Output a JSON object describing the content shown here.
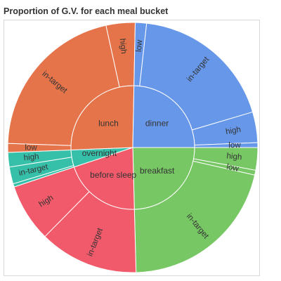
{
  "chart_data": {
    "type": "sunburst",
    "title": "Proportion of G.V. for each meal bucket",
    "colors": {
      "breakfast": "#77c764",
      "before sleep": "#f15a6a",
      "overnight": "#36c0a9",
      "lunch": "#e5744b",
      "dinner": "#6797e8"
    },
    "segments": [
      {
        "label": "breakfast",
        "children": [
          {
            "label": "high",
            "value": 2.8
          },
          {
            "label": "low",
            "value": 0.6
          },
          {
            "label": "in-target",
            "value": 20.2
          }
        ]
      },
      {
        "label": "before sleep",
        "children": [
          {
            "label": "in-target",
            "value": 12.3
          },
          {
            "label": "high",
            "value": 7.2
          }
        ]
      },
      {
        "label": "overnight",
        "children": [
          {
            "label": "low",
            "value": 0.4
          },
          {
            "label": "in-target",
            "value": 2.1
          },
          {
            "label": "high",
            "value": 1.8
          }
        ]
      },
      {
        "label": "lunch",
        "children": [
          {
            "label": "low",
            "value": 1.1
          },
          {
            "label": "in-target",
            "value": 20.2
          },
          {
            "label": "high",
            "value": 3.6
          }
        ]
      },
      {
        "label": "dinner",
        "children": [
          {
            "label": "low",
            "value": 1.4
          },
          {
            "label": "in-target",
            "value": 17.9
          },
          {
            "label": "high",
            "value": 3.8
          },
          {
            "label": "low",
            "value": 0.6
          }
        ]
      }
    ]
  }
}
